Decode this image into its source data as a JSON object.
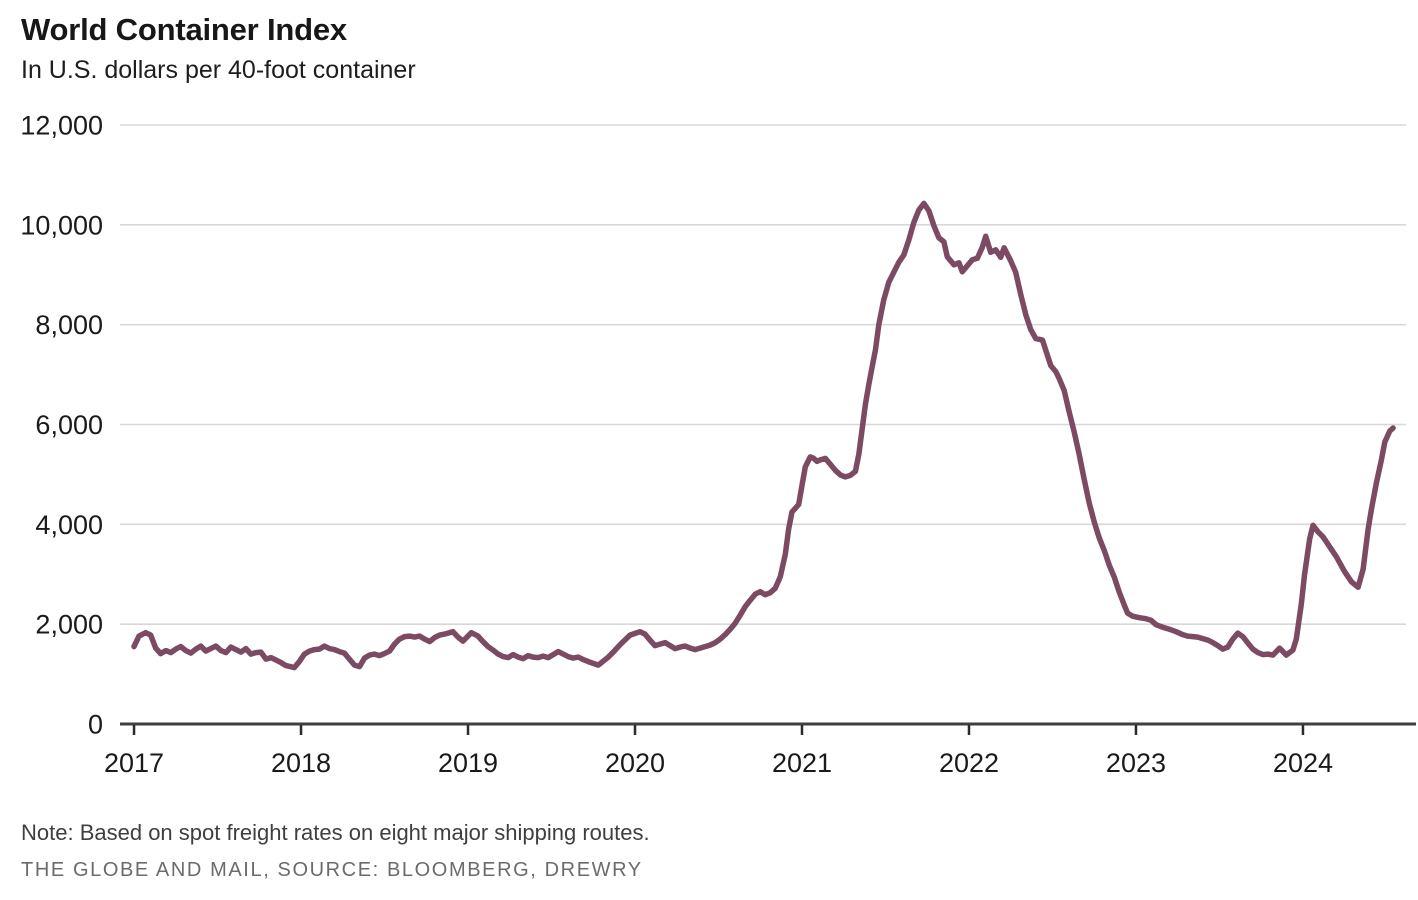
{
  "header": {
    "title": "World Container Index",
    "subtitle": "In U.S. dollars per 40-foot container"
  },
  "footer": {
    "note": "Note: Based on spot freight rates on eight major shipping routes.",
    "source": "THE GLOBE AND MAIL, SOURCE: BLOOMBERG, DREWRY"
  },
  "chart_data": {
    "type": "line",
    "title": "World Container Index",
    "ylabel": "U.S. dollars per 40-foot container",
    "xlabel": "",
    "grid": true,
    "legend": false,
    "line_color": "#7c4a63",
    "grid_color": "#d8d8d8",
    "axis_color": "#3f3e40",
    "tick_color": "#2a2a2a",
    "label_color": "#1a1a1a",
    "xlim": [
      2016.916,
      2024.617
    ],
    "ylim": [
      0,
      12000
    ],
    "x_ticks": [
      2017,
      2018,
      2019,
      2020,
      2021,
      2022,
      2023,
      2024
    ],
    "x_tick_labels": [
      "2017",
      "2018",
      "2019",
      "2020",
      "2021",
      "2022",
      "2023",
      "2024"
    ],
    "y_ticks": [
      0,
      2000,
      4000,
      6000,
      8000,
      10000,
      12000
    ],
    "y_tick_labels": [
      "0",
      "2,000",
      "4,000",
      "6,000",
      "8,000",
      "10,000",
      "12,000"
    ],
    "series": [
      {
        "name": "World Container Index (USD per 40-ft container)",
        "points": [
          [
            2017.0,
            1550
          ],
          [
            2017.03,
            1760
          ],
          [
            2017.07,
            1830
          ],
          [
            2017.1,
            1780
          ],
          [
            2017.13,
            1520
          ],
          [
            2017.16,
            1410
          ],
          [
            2017.19,
            1470
          ],
          [
            2017.22,
            1430
          ],
          [
            2017.25,
            1500
          ],
          [
            2017.28,
            1550
          ],
          [
            2017.31,
            1470
          ],
          [
            2017.34,
            1420
          ],
          [
            2017.37,
            1500
          ],
          [
            2017.4,
            1560
          ],
          [
            2017.43,
            1460
          ],
          [
            2017.46,
            1510
          ],
          [
            2017.49,
            1560
          ],
          [
            2017.52,
            1470
          ],
          [
            2017.55,
            1430
          ],
          [
            2017.58,
            1540
          ],
          [
            2017.61,
            1490
          ],
          [
            2017.64,
            1440
          ],
          [
            2017.67,
            1510
          ],
          [
            2017.7,
            1400
          ],
          [
            2017.73,
            1430
          ],
          [
            2017.76,
            1440
          ],
          [
            2017.79,
            1300
          ],
          [
            2017.82,
            1330
          ],
          [
            2017.85,
            1280
          ],
          [
            2017.88,
            1230
          ],
          [
            2017.91,
            1170
          ],
          [
            2017.96,
            1130
          ],
          [
            2017.99,
            1250
          ],
          [
            2018.02,
            1400
          ],
          [
            2018.05,
            1460
          ],
          [
            2018.08,
            1490
          ],
          [
            2018.11,
            1500
          ],
          [
            2018.14,
            1560
          ],
          [
            2018.17,
            1510
          ],
          [
            2018.2,
            1490
          ],
          [
            2018.23,
            1450
          ],
          [
            2018.26,
            1420
          ],
          [
            2018.29,
            1300
          ],
          [
            2018.32,
            1180
          ],
          [
            2018.35,
            1150
          ],
          [
            2018.38,
            1320
          ],
          [
            2018.41,
            1380
          ],
          [
            2018.44,
            1400
          ],
          [
            2018.47,
            1370
          ],
          [
            2018.5,
            1410
          ],
          [
            2018.53,
            1460
          ],
          [
            2018.56,
            1600
          ],
          [
            2018.59,
            1700
          ],
          [
            2018.62,
            1750
          ],
          [
            2018.65,
            1760
          ],
          [
            2018.68,
            1740
          ],
          [
            2018.71,
            1760
          ],
          [
            2018.74,
            1700
          ],
          [
            2018.77,
            1650
          ],
          [
            2018.8,
            1730
          ],
          [
            2018.83,
            1780
          ],
          [
            2018.86,
            1800
          ],
          [
            2018.91,
            1850
          ],
          [
            2018.94,
            1740
          ],
          [
            2018.97,
            1660
          ],
          [
            2019.0,
            1760
          ],
          [
            2019.02,
            1830
          ],
          [
            2019.06,
            1760
          ],
          [
            2019.09,
            1650
          ],
          [
            2019.12,
            1550
          ],
          [
            2019.15,
            1480
          ],
          [
            2019.18,
            1400
          ],
          [
            2019.21,
            1350
          ],
          [
            2019.24,
            1330
          ],
          [
            2019.27,
            1390
          ],
          [
            2019.3,
            1340
          ],
          [
            2019.33,
            1310
          ],
          [
            2019.36,
            1370
          ],
          [
            2019.39,
            1340
          ],
          [
            2019.42,
            1330
          ],
          [
            2019.45,
            1360
          ],
          [
            2019.48,
            1330
          ],
          [
            2019.51,
            1390
          ],
          [
            2019.54,
            1450
          ],
          [
            2019.57,
            1400
          ],
          [
            2019.6,
            1350
          ],
          [
            2019.63,
            1320
          ],
          [
            2019.66,
            1340
          ],
          [
            2019.69,
            1290
          ],
          [
            2019.72,
            1250
          ],
          [
            2019.78,
            1180
          ],
          [
            2019.81,
            1260
          ],
          [
            2019.84,
            1340
          ],
          [
            2019.87,
            1440
          ],
          [
            2019.9,
            1550
          ],
          [
            2019.93,
            1650
          ],
          [
            2019.97,
            1780
          ],
          [
            2020.03,
            1850
          ],
          [
            2020.06,
            1800
          ],
          [
            2020.09,
            1680
          ],
          [
            2020.12,
            1570
          ],
          [
            2020.15,
            1600
          ],
          [
            2020.18,
            1630
          ],
          [
            2020.21,
            1570
          ],
          [
            2020.24,
            1510
          ],
          [
            2020.27,
            1540
          ],
          [
            2020.3,
            1560
          ],
          [
            2020.33,
            1520
          ],
          [
            2020.36,
            1490
          ],
          [
            2020.39,
            1520
          ],
          [
            2020.42,
            1550
          ],
          [
            2020.45,
            1580
          ],
          [
            2020.48,
            1630
          ],
          [
            2020.51,
            1700
          ],
          [
            2020.54,
            1790
          ],
          [
            2020.57,
            1900
          ],
          [
            2020.6,
            2020
          ],
          [
            2020.63,
            2180
          ],
          [
            2020.66,
            2350
          ],
          [
            2020.69,
            2480
          ],
          [
            2020.72,
            2600
          ],
          [
            2020.75,
            2650
          ],
          [
            2020.78,
            2590
          ],
          [
            2020.81,
            2630
          ],
          [
            2020.84,
            2720
          ],
          [
            2020.87,
            2950
          ],
          [
            2020.9,
            3400
          ],
          [
            2020.92,
            3900
          ],
          [
            2020.94,
            4250
          ],
          [
            2020.96,
            4320
          ],
          [
            2020.98,
            4400
          ],
          [
            2021.0,
            4780
          ],
          [
            2021.02,
            5150
          ],
          [
            2021.05,
            5350
          ],
          [
            2021.07,
            5320
          ],
          [
            2021.09,
            5260
          ],
          [
            2021.11,
            5290
          ],
          [
            2021.14,
            5320
          ],
          [
            2021.17,
            5200
          ],
          [
            2021.2,
            5080
          ],
          [
            2021.23,
            4990
          ],
          [
            2021.26,
            4950
          ],
          [
            2021.29,
            4980
          ],
          [
            2021.32,
            5060
          ],
          [
            2021.34,
            5400
          ],
          [
            2021.36,
            5900
          ],
          [
            2021.38,
            6400
          ],
          [
            2021.4,
            6800
          ],
          [
            2021.42,
            7150
          ],
          [
            2021.44,
            7500
          ],
          [
            2021.46,
            8000
          ],
          [
            2021.49,
            8500
          ],
          [
            2021.52,
            8850
          ],
          [
            2021.55,
            9050
          ],
          [
            2021.58,
            9250
          ],
          [
            2021.61,
            9400
          ],
          [
            2021.64,
            9700
          ],
          [
            2021.67,
            10050
          ],
          [
            2021.7,
            10300
          ],
          [
            2021.73,
            10430
          ],
          [
            2021.76,
            10280
          ],
          [
            2021.79,
            9980
          ],
          [
            2021.82,
            9740
          ],
          [
            2021.85,
            9660
          ],
          [
            2021.87,
            9360
          ],
          [
            2021.91,
            9200
          ],
          [
            2021.94,
            9240
          ],
          [
            2021.96,
            9060
          ],
          [
            2021.99,
            9180
          ],
          [
            2022.02,
            9300
          ],
          [
            2022.05,
            9330
          ],
          [
            2022.08,
            9550
          ],
          [
            2022.1,
            9770
          ],
          [
            2022.13,
            9450
          ],
          [
            2022.16,
            9500
          ],
          [
            2022.19,
            9350
          ],
          [
            2022.21,
            9540
          ],
          [
            2022.25,
            9280
          ],
          [
            2022.28,
            9050
          ],
          [
            2022.31,
            8600
          ],
          [
            2022.34,
            8200
          ],
          [
            2022.37,
            7900
          ],
          [
            2022.4,
            7720
          ],
          [
            2022.44,
            7690
          ],
          [
            2022.47,
            7380
          ],
          [
            2022.49,
            7180
          ],
          [
            2022.52,
            7060
          ],
          [
            2022.54,
            6920
          ],
          [
            2022.57,
            6680
          ],
          [
            2022.6,
            6250
          ],
          [
            2022.63,
            5850
          ],
          [
            2022.66,
            5400
          ],
          [
            2022.69,
            4900
          ],
          [
            2022.72,
            4430
          ],
          [
            2022.75,
            4050
          ],
          [
            2022.78,
            3730
          ],
          [
            2022.81,
            3480
          ],
          [
            2022.84,
            3180
          ],
          [
            2022.87,
            2940
          ],
          [
            2022.9,
            2640
          ],
          [
            2022.93,
            2380
          ],
          [
            2022.95,
            2220
          ],
          [
            2022.98,
            2160
          ],
          [
            2023.02,
            2130
          ],
          [
            2023.06,
            2110
          ],
          [
            2023.09,
            2080
          ],
          [
            2023.12,
            1990
          ],
          [
            2023.16,
            1940
          ],
          [
            2023.2,
            1900
          ],
          [
            2023.24,
            1850
          ],
          [
            2023.28,
            1790
          ],
          [
            2023.31,
            1760
          ],
          [
            2023.34,
            1750
          ],
          [
            2023.37,
            1740
          ],
          [
            2023.4,
            1710
          ],
          [
            2023.43,
            1680
          ],
          [
            2023.46,
            1630
          ],
          [
            2023.49,
            1570
          ],
          [
            2023.52,
            1500
          ],
          [
            2023.55,
            1540
          ],
          [
            2023.58,
            1700
          ],
          [
            2023.61,
            1820
          ],
          [
            2023.64,
            1750
          ],
          [
            2023.67,
            1620
          ],
          [
            2023.7,
            1500
          ],
          [
            2023.73,
            1430
          ],
          [
            2023.76,
            1390
          ],
          [
            2023.79,
            1400
          ],
          [
            2023.82,
            1380
          ],
          [
            2023.86,
            1520
          ],
          [
            2023.9,
            1380
          ],
          [
            2023.94,
            1480
          ],
          [
            2023.96,
            1700
          ],
          [
            2023.99,
            2400
          ],
          [
            2024.01,
            3000
          ],
          [
            2024.04,
            3700
          ],
          [
            2024.06,
            3980
          ],
          [
            2024.09,
            3850
          ],
          [
            2024.12,
            3750
          ],
          [
            2024.16,
            3550
          ],
          [
            2024.2,
            3350
          ],
          [
            2024.25,
            3050
          ],
          [
            2024.29,
            2850
          ],
          [
            2024.33,
            2740
          ],
          [
            2024.36,
            3100
          ],
          [
            2024.39,
            3900
          ],
          [
            2024.41,
            4300
          ],
          [
            2024.44,
            4830
          ],
          [
            2024.47,
            5300
          ],
          [
            2024.49,
            5650
          ],
          [
            2024.52,
            5870
          ],
          [
            2024.54,
            5930
          ]
        ]
      }
    ]
  }
}
